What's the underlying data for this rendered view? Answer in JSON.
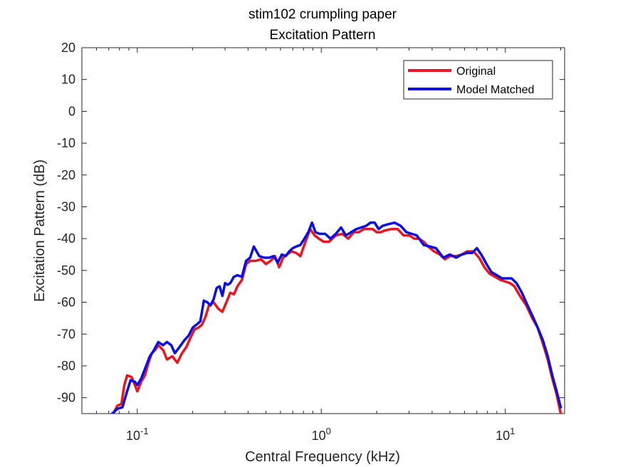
{
  "chart_data": {
    "type": "line",
    "title": "stim102 crumpling paper",
    "subtitle": "Excitation Pattern",
    "xlabel": "Central Frequency (kHz)",
    "ylabel": "Excitation Pattern (dB)",
    "x_scale": "log",
    "xlim": [
      0.05,
      21
    ],
    "ylim": [
      -95,
      20
    ],
    "x_ticks": [
      {
        "value": 0.1,
        "label": "10",
        "exp": "-1"
      },
      {
        "value": 1,
        "label": "10",
        "exp": "0"
      },
      {
        "value": 10,
        "label": "10",
        "exp": "1"
      }
    ],
    "y_ticks": [
      20,
      10,
      0,
      -10,
      -20,
      -30,
      -40,
      -50,
      -60,
      -70,
      -80,
      -90
    ],
    "grid": false,
    "legend_position": "top-right",
    "series": [
      {
        "name": "Original",
        "color": "#e8161f",
        "points": [
          [
            0.074,
            -95
          ],
          [
            0.078,
            -92.5
          ],
          [
            0.082,
            -92
          ],
          [
            0.085,
            -86
          ],
          [
            0.088,
            -83
          ],
          [
            0.093,
            -83.5
          ],
          [
            0.097,
            -86
          ],
          [
            0.1,
            -88
          ],
          [
            0.105,
            -85
          ],
          [
            0.11,
            -83
          ],
          [
            0.115,
            -79
          ],
          [
            0.12,
            -76
          ],
          [
            0.125,
            -75
          ],
          [
            0.13,
            -73.5
          ],
          [
            0.138,
            -75
          ],
          [
            0.145,
            -78
          ],
          [
            0.155,
            -77
          ],
          [
            0.165,
            -79
          ],
          [
            0.175,
            -76
          ],
          [
            0.185,
            -74
          ],
          [
            0.195,
            -71
          ],
          [
            0.205,
            -68.5
          ],
          [
            0.215,
            -68
          ],
          [
            0.225,
            -67
          ],
          [
            0.235,
            -64.5
          ],
          [
            0.245,
            -61
          ],
          [
            0.26,
            -60
          ],
          [
            0.275,
            -62
          ],
          [
            0.29,
            -63
          ],
          [
            0.305,
            -60
          ],
          [
            0.32,
            -57
          ],
          [
            0.335,
            -57.5
          ],
          [
            0.35,
            -55
          ],
          [
            0.37,
            -53
          ],
          [
            0.39,
            -48
          ],
          [
            0.41,
            -47
          ],
          [
            0.44,
            -47
          ],
          [
            0.47,
            -46.5
          ],
          [
            0.5,
            -48
          ],
          [
            0.53,
            -47
          ],
          [
            0.56,
            -45.5
          ],
          [
            0.59,
            -49
          ],
          [
            0.62,
            -46
          ],
          [
            0.65,
            -45
          ],
          [
            0.69,
            -44
          ],
          [
            0.73,
            -44.5
          ],
          [
            0.77,
            -45.5
          ],
          [
            0.82,
            -41
          ],
          [
            0.87,
            -37
          ],
          [
            0.92,
            -39
          ],
          [
            0.97,
            -40
          ],
          [
            1.03,
            -41
          ],
          [
            1.1,
            -41
          ],
          [
            1.2,
            -39
          ],
          [
            1.3,
            -38.5
          ],
          [
            1.4,
            -40
          ],
          [
            1.5,
            -38
          ],
          [
            1.6,
            -38
          ],
          [
            1.7,
            -37
          ],
          [
            1.8,
            -37
          ],
          [
            1.9,
            -37
          ],
          [
            2.0,
            -38
          ],
          [
            2.1,
            -38
          ],
          [
            2.2,
            -37.5
          ],
          [
            2.4,
            -37
          ],
          [
            2.6,
            -37
          ],
          [
            2.8,
            -39
          ],
          [
            3.0,
            -39
          ],
          [
            3.2,
            -40
          ],
          [
            3.4,
            -40
          ],
          [
            3.6,
            -41
          ],
          [
            3.8,
            -42.5
          ],
          [
            4.1,
            -44
          ],
          [
            4.4,
            -45
          ],
          [
            4.7,
            -46.5
          ],
          [
            5.0,
            -45.5
          ],
          [
            5.4,
            -45.5
          ],
          [
            5.8,
            -45
          ],
          [
            6.2,
            -44
          ],
          [
            6.7,
            -44
          ],
          [
            7.2,
            -46
          ],
          [
            7.7,
            -49
          ],
          [
            8.2,
            -51
          ],
          [
            8.8,
            -52
          ],
          [
            9.4,
            -53
          ],
          [
            10.0,
            -53.5
          ],
          [
            10.6,
            -54
          ],
          [
            11.2,
            -55
          ],
          [
            12.0,
            -58
          ],
          [
            13.0,
            -61
          ],
          [
            14.0,
            -65
          ],
          [
            15.0,
            -68
          ],
          [
            16.0,
            -73
          ],
          [
            17.0,
            -78
          ],
          [
            18.0,
            -84
          ],
          [
            19.0,
            -89
          ],
          [
            20.0,
            -95
          ]
        ]
      },
      {
        "name": "Model Matched",
        "color": "#0b0fe3",
        "points": [
          [
            0.073,
            -95
          ],
          [
            0.078,
            -93.5
          ],
          [
            0.083,
            -93
          ],
          [
            0.088,
            -88
          ],
          [
            0.092,
            -84.5
          ],
          [
            0.097,
            -85
          ],
          [
            0.1,
            -86
          ],
          [
            0.105,
            -84
          ],
          [
            0.11,
            -81
          ],
          [
            0.117,
            -77
          ],
          [
            0.122,
            -75.5
          ],
          [
            0.13,
            -72.5
          ],
          [
            0.138,
            -73.5
          ],
          [
            0.145,
            -72.5
          ],
          [
            0.153,
            -73.5
          ],
          [
            0.16,
            -76
          ],
          [
            0.17,
            -74
          ],
          [
            0.18,
            -72
          ],
          [
            0.19,
            -70.5
          ],
          [
            0.2,
            -68
          ],
          [
            0.21,
            -67
          ],
          [
            0.22,
            -66
          ],
          [
            0.23,
            -59.5
          ],
          [
            0.24,
            -60
          ],
          [
            0.25,
            -61
          ],
          [
            0.26,
            -59
          ],
          [
            0.27,
            -55.5
          ],
          [
            0.28,
            -55
          ],
          [
            0.29,
            -58
          ],
          [
            0.3,
            -54
          ],
          [
            0.31,
            -54.5
          ],
          [
            0.32,
            -54
          ],
          [
            0.335,
            -52
          ],
          [
            0.35,
            -51.5
          ],
          [
            0.37,
            -52
          ],
          [
            0.39,
            -47
          ],
          [
            0.41,
            -46
          ],
          [
            0.43,
            -42.5
          ],
          [
            0.46,
            -45.5
          ],
          [
            0.49,
            -46
          ],
          [
            0.52,
            -46
          ],
          [
            0.55,
            -45.5
          ],
          [
            0.58,
            -47.5
          ],
          [
            0.61,
            -45
          ],
          [
            0.64,
            -45.5
          ],
          [
            0.67,
            -44
          ],
          [
            0.7,
            -43
          ],
          [
            0.73,
            -42.5
          ],
          [
            0.77,
            -42
          ],
          [
            0.81,
            -40
          ],
          [
            0.85,
            -38
          ],
          [
            0.89,
            -35
          ],
          [
            0.93,
            -38
          ],
          [
            0.98,
            -38.5
          ],
          [
            1.05,
            -38.5
          ],
          [
            1.12,
            -40
          ],
          [
            1.2,
            -38.5
          ],
          [
            1.28,
            -36.5
          ],
          [
            1.36,
            -39
          ],
          [
            1.45,
            -38
          ],
          [
            1.55,
            -37
          ],
          [
            1.65,
            -36.5
          ],
          [
            1.75,
            -36
          ],
          [
            1.85,
            -35
          ],
          [
            1.95,
            -35
          ],
          [
            2.05,
            -37
          ],
          [
            2.15,
            -36
          ],
          [
            2.3,
            -35.5
          ],
          [
            2.5,
            -35
          ],
          [
            2.7,
            -36
          ],
          [
            2.9,
            -38
          ],
          [
            3.1,
            -38.5
          ],
          [
            3.3,
            -39
          ],
          [
            3.6,
            -42
          ],
          [
            3.9,
            -42.5
          ],
          [
            4.2,
            -43
          ],
          [
            4.6,
            -46
          ],
          [
            5.0,
            -45
          ],
          [
            5.4,
            -46
          ],
          [
            5.8,
            -45
          ],
          [
            6.2,
            -44.5
          ],
          [
            6.6,
            -44.5
          ],
          [
            7.0,
            -43
          ],
          [
            7.4,
            -45
          ],
          [
            7.9,
            -48
          ],
          [
            8.4,
            -50.5
          ],
          [
            9.0,
            -51.5
          ],
          [
            9.6,
            -52.5
          ],
          [
            10.2,
            -52.5
          ],
          [
            10.8,
            -52.5
          ],
          [
            11.5,
            -54
          ],
          [
            12.3,
            -57
          ],
          [
            13.2,
            -61
          ],
          [
            14.1,
            -64.5
          ],
          [
            15.0,
            -68
          ],
          [
            16.0,
            -72
          ],
          [
            17.0,
            -77
          ],
          [
            18.0,
            -83
          ],
          [
            19.0,
            -88
          ],
          [
            20.0,
            -93
          ]
        ]
      }
    ]
  }
}
